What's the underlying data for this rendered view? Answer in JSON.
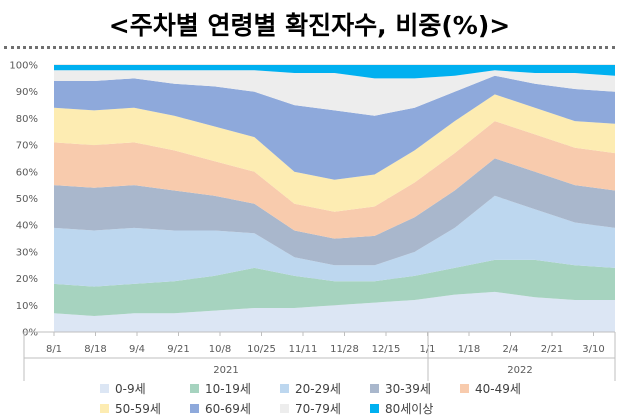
{
  "title": "<주차별 연령별 확진자수, 비중(%)>",
  "chart_data": {
    "type": "area",
    "stacked": true,
    "title": "<주차별 연령별 확진자수, 비중(%)>",
    "y_axis": {
      "min": 0,
      "max": 100,
      "unit": "%",
      "ticks": [
        "0%",
        "10%",
        "20%",
        "30%",
        "40%",
        "50%",
        "60%",
        "70%",
        "80%",
        "90%",
        "100%"
      ]
    },
    "x_ticks": [
      "8/1",
      "8/18",
      "9/4",
      "9/21",
      "10/8",
      "10/25",
      "11/11",
      "11/28",
      "12/15",
      "1/1",
      "1/18",
      "2/4",
      "2/21",
      "3/10"
    ],
    "year_labels": [
      "2021",
      "2022"
    ],
    "legend_position": "bottom",
    "series": [
      {
        "name": "0-9세",
        "color": "#dce6f4",
        "values": [
          7,
          6,
          7,
          7,
          8,
          9,
          9,
          10,
          11,
          12,
          14,
          15,
          13,
          12,
          12
        ]
      },
      {
        "name": "10-19세",
        "color": "#a6d3bf",
        "values": [
          11,
          11,
          11,
          12,
          13,
          15,
          12,
          9,
          8,
          9,
          10,
          12,
          14,
          13,
          12
        ]
      },
      {
        "name": "20-29세",
        "color": "#bdd7ef",
        "values": [
          21,
          21,
          21,
          19,
          17,
          13,
          7,
          6,
          6,
          9,
          15,
          24,
          19,
          16,
          15
        ]
      },
      {
        "name": "30-39세",
        "color": "#a9b7cc",
        "values": [
          16,
          16,
          16,
          15,
          13,
          11,
          10,
          10,
          11,
          13,
          14,
          14,
          14,
          14,
          14
        ]
      },
      {
        "name": "40-49세",
        "color": "#f8cbad",
        "values": [
          16,
          16,
          16,
          15,
          13,
          12,
          10,
          10,
          11,
          13,
          14,
          14,
          14,
          14,
          14
        ]
      },
      {
        "name": "50-59세",
        "color": "#fdecb2",
        "values": [
          13,
          13,
          13,
          13,
          13,
          13,
          12,
          12,
          12,
          12,
          12,
          10,
          10,
          10,
          11
        ]
      },
      {
        "name": "60-69세",
        "color": "#8ea9db",
        "values": [
          10,
          11,
          11,
          12,
          15,
          17,
          25,
          26,
          22,
          16,
          11,
          7,
          9,
          12,
          12
        ]
      },
      {
        "name": "70-79세",
        "color": "#ededed",
        "values": [
          4,
          4,
          3,
          5,
          6,
          8,
          12,
          14,
          14,
          11,
          6,
          2,
          4,
          6,
          6
        ]
      },
      {
        "name": "80세이상",
        "color": "#00b0f0",
        "values": [
          2,
          2,
          2,
          2,
          2,
          2,
          3,
          3,
          5,
          5,
          4,
          2,
          3,
          3,
          4
        ]
      }
    ]
  }
}
